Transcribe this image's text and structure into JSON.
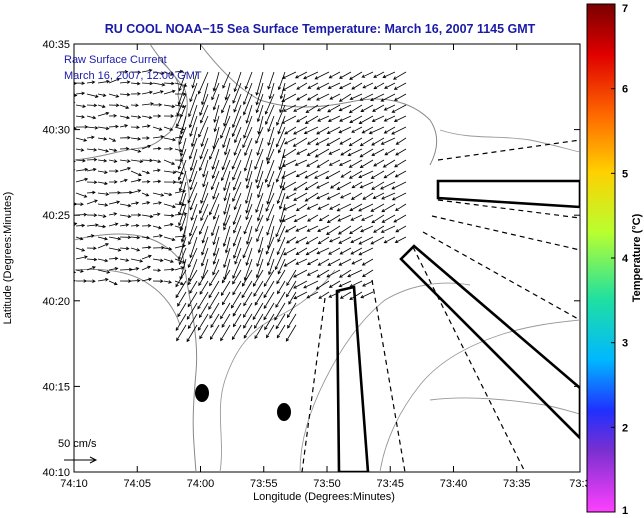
{
  "title": "RU COOL  NOAA−15  Sea Surface Temperature:  March 16, 2007 1145 GMT",
  "annotation": {
    "line1": "Raw Surface Current",
    "line2": "March 16, 2007, 12:00 GMT"
  },
  "axes": {
    "xlabel": "Longitude (Degrees:Minutes)",
    "ylabel": "Latitude (Degrees:Minutes)",
    "xticks": [
      "74:10",
      "74:05",
      "74:00",
      "73:55",
      "73:50",
      "73:45",
      "73:40",
      "73:35",
      "73:3"
    ],
    "yticks": [
      "40:35",
      "40:30",
      "40:25",
      "40:20",
      "40:15",
      "40:10"
    ]
  },
  "scale_label": "50 cm/s",
  "colorbar": {
    "label": "Temperature (°C)",
    "ticks": [
      "7",
      "6",
      "5",
      "4",
      "3",
      "2",
      "1"
    ],
    "range": [
      1,
      7
    ]
  },
  "colors": {
    "title": "#1a1aa8",
    "annotation": "#1a1aa8",
    "coast": "#888888",
    "vectors": "#000000"
  },
  "chart_data": {
    "type": "map",
    "x_range_deg_min": [
      "74:10",
      "73:30"
    ],
    "y_range_deg_min": [
      "40:10",
      "40:35"
    ],
    "layers": [
      "coastline",
      "bathymetry contours",
      "surface current vectors",
      "sampling transects",
      "buoy markers"
    ]
  }
}
